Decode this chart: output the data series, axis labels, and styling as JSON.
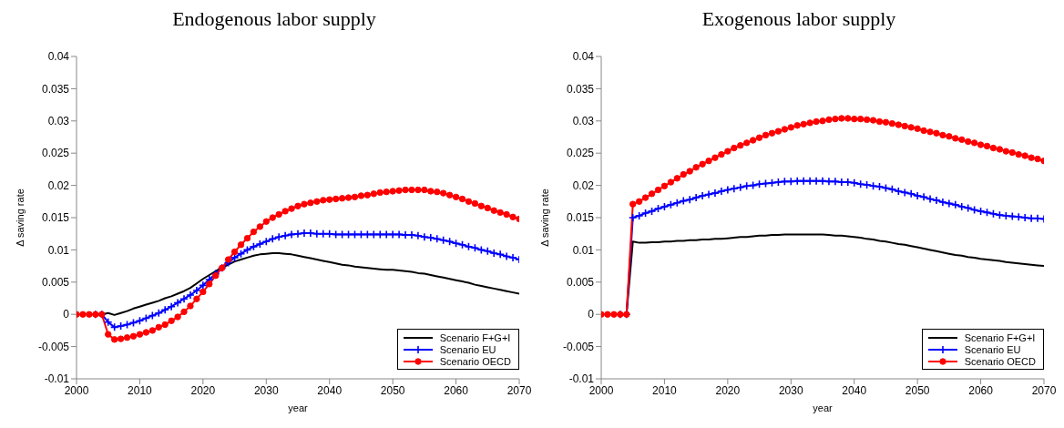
{
  "chart_data": [
    {
      "type": "line",
      "title": "Endogenous labor supply",
      "xlabel": "year",
      "ylabel": "Δ saving rate",
      "legend": "bottom right",
      "grid": false,
      "line_style": "solid",
      "xlim": [
        2000,
        2070
      ],
      "xticks": [
        2000,
        2010,
        2020,
        2030,
        2040,
        2050,
        2060,
        2070
      ],
      "ylim": [
        -0.01,
        0.04
      ],
      "yticks": [
        -0.01,
        -0.005,
        0,
        0.005,
        0.01,
        0.015,
        0.02,
        0.025,
        0.03,
        0.035,
        0.04
      ],
      "x": [
        2000,
        2001,
        2002,
        2003,
        2004,
        2005,
        2006,
        2007,
        2008,
        2009,
        2010,
        2011,
        2012,
        2013,
        2014,
        2015,
        2016,
        2017,
        2018,
        2019,
        2020,
        2021,
        2022,
        2023,
        2024,
        2025,
        2026,
        2027,
        2028,
        2029,
        2030,
        2031,
        2032,
        2033,
        2034,
        2035,
        2036,
        2037,
        2038,
        2039,
        2040,
        2041,
        2042,
        2043,
        2044,
        2045,
        2046,
        2047,
        2048,
        2049,
        2050,
        2051,
        2052,
        2053,
        2054,
        2055,
        2056,
        2057,
        2058,
        2059,
        2060,
        2061,
        2062,
        2063,
        2064,
        2065,
        2066,
        2067,
        2068,
        2069,
        2070
      ],
      "series": [
        {
          "name": "Scenario F+G+I",
          "color": "#000000",
          "marker": "none",
          "values": [
            null,
            null,
            null,
            0,
            0,
            0.0002,
            -0.0001,
            0.0002,
            0.0005,
            0.0009,
            0.0012,
            0.0015,
            0.0018,
            0.0021,
            0.0025,
            0.0028,
            0.0032,
            0.0036,
            0.0041,
            0.0048,
            0.0055,
            0.0061,
            0.0067,
            0.0072,
            0.0077,
            0.0082,
            0.0085,
            0.0088,
            0.0091,
            0.0093,
            0.0094,
            0.0095,
            0.0095,
            0.0094,
            0.0093,
            0.0091,
            0.0089,
            0.0087,
            0.0085,
            0.0083,
            0.0081,
            0.0079,
            0.0077,
            0.0076,
            0.0074,
            0.0073,
            0.0072,
            0.0071,
            0.007,
            0.0069,
            0.0069,
            0.0068,
            0.0067,
            0.0066,
            0.0064,
            0.0063,
            0.0061,
            0.0059,
            0.0057,
            0.0055,
            0.0053,
            0.0051,
            0.0049,
            0.0046,
            0.0044,
            0.0042,
            0.004,
            0.0038,
            0.0036,
            0.0034,
            0.0032
          ]
        },
        {
          "name": "Scenario EU",
          "color": "#0000ff",
          "marker": "cross",
          "values": [
            null,
            null,
            null,
            0,
            0,
            -0.0012,
            -0.002,
            -0.0018,
            -0.0016,
            -0.0013,
            -0.001,
            -0.0006,
            -0.0002,
            0.0002,
            0.0007,
            0.0012,
            0.0018,
            0.0024,
            0.003,
            0.0037,
            0.0045,
            0.0054,
            0.0063,
            0.0072,
            0.008,
            0.0088,
            0.0094,
            0.01,
            0.0105,
            0.0109,
            0.0113,
            0.0117,
            0.012,
            0.0122,
            0.0124,
            0.0125,
            0.0126,
            0.0126,
            0.0125,
            0.0125,
            0.0125,
            0.0124,
            0.0124,
            0.0124,
            0.0124,
            0.0124,
            0.0124,
            0.0124,
            0.0124,
            0.0124,
            0.0124,
            0.0124,
            0.0123,
            0.0123,
            0.0122,
            0.012,
            0.0119,
            0.0117,
            0.0115,
            0.0113,
            0.011,
            0.0108,
            0.0105,
            0.0103,
            0.01,
            0.0098,
            0.0095,
            0.0093,
            0.009,
            0.0088,
            0.0085
          ]
        },
        {
          "name": "Scenario OECD",
          "color": "#ff0000",
          "marker": "circle",
          "values": [
            0,
            0,
            0,
            0,
            0,
            -0.0031,
            -0.0039,
            -0.0038,
            -0.0036,
            -0.0034,
            -0.0031,
            -0.0028,
            -0.0025,
            -0.002,
            -0.0016,
            -0.001,
            -0.0004,
            0.0004,
            0.0013,
            0.0024,
            0.0035,
            0.0047,
            0.006,
            0.0072,
            0.0085,
            0.0097,
            0.0108,
            0.0118,
            0.0128,
            0.0136,
            0.0144,
            0.015,
            0.0155,
            0.016,
            0.0164,
            0.0168,
            0.0171,
            0.0173,
            0.0175,
            0.0177,
            0.0178,
            0.0179,
            0.018,
            0.0181,
            0.0182,
            0.0184,
            0.0185,
            0.0187,
            0.0189,
            0.019,
            0.0191,
            0.0192,
            0.0193,
            0.0193,
            0.0193,
            0.0193,
            0.0191,
            0.019,
            0.0188,
            0.0185,
            0.0182,
            0.0179,
            0.0175,
            0.0172,
            0.0168,
            0.0165,
            0.0161,
            0.0158,
            0.0155,
            0.0151,
            0.0148
          ]
        }
      ]
    },
    {
      "type": "line",
      "title": "Exogenous labor supply",
      "xlabel": "year",
      "ylabel": "Δ saving rate",
      "legend": "bottom right",
      "grid": false,
      "line_style": "solid",
      "xlim": [
        2000,
        2070
      ],
      "xticks": [
        2000,
        2010,
        2020,
        2030,
        2040,
        2050,
        2060,
        2070
      ],
      "ylim": [
        -0.01,
        0.04
      ],
      "yticks": [
        -0.01,
        -0.005,
        0,
        0.005,
        0.01,
        0.015,
        0.02,
        0.025,
        0.03,
        0.035,
        0.04
      ],
      "x": [
        2000,
        2001,
        2002,
        2003,
        2004,
        2005,
        2006,
        2007,
        2008,
        2009,
        2010,
        2011,
        2012,
        2013,
        2014,
        2015,
        2016,
        2017,
        2018,
        2019,
        2020,
        2021,
        2022,
        2023,
        2024,
        2025,
        2026,
        2027,
        2028,
        2029,
        2030,
        2031,
        2032,
        2033,
        2034,
        2035,
        2036,
        2037,
        2038,
        2039,
        2040,
        2041,
        2042,
        2043,
        2044,
        2045,
        2046,
        2047,
        2048,
        2049,
        2050,
        2051,
        2052,
        2053,
        2054,
        2055,
        2056,
        2057,
        2058,
        2059,
        2060,
        2061,
        2062,
        2063,
        2064,
        2065,
        2066,
        2067,
        2068,
        2069,
        2070
      ],
      "series": [
        {
          "name": "Scenario F+G+I",
          "color": "#000000",
          "marker": "none",
          "values": [
            null,
            null,
            null,
            0,
            0,
            0.0113,
            0.0111,
            0.0111,
            0.0112,
            0.0112,
            0.0113,
            0.0113,
            0.0114,
            0.0114,
            0.0115,
            0.0115,
            0.0116,
            0.0116,
            0.0117,
            0.0117,
            0.0118,
            0.0119,
            0.012,
            0.012,
            0.0121,
            0.0122,
            0.0122,
            0.0123,
            0.0123,
            0.0124,
            0.0124,
            0.0124,
            0.0124,
            0.0124,
            0.0124,
            0.0124,
            0.0123,
            0.0122,
            0.0122,
            0.0121,
            0.012,
            0.0119,
            0.0117,
            0.0116,
            0.0114,
            0.0113,
            0.0111,
            0.0109,
            0.0108,
            0.0106,
            0.0104,
            0.0102,
            0.01,
            0.0098,
            0.0096,
            0.0094,
            0.0092,
            0.0091,
            0.0089,
            0.0088,
            0.0086,
            0.0085,
            0.0084,
            0.0083,
            0.0081,
            0.008,
            0.0079,
            0.0078,
            0.0077,
            0.0076,
            0.0075
          ]
        },
        {
          "name": "Scenario EU",
          "color": "#0000ff",
          "marker": "cross",
          "values": [
            null,
            null,
            null,
            0,
            0,
            0.015,
            0.0153,
            0.0157,
            0.016,
            0.0164,
            0.0167,
            0.017,
            0.0173,
            0.0176,
            0.0178,
            0.0181,
            0.0184,
            0.0186,
            0.0188,
            0.0191,
            0.0193,
            0.0195,
            0.0197,
            0.0199,
            0.02,
            0.0202,
            0.0203,
            0.0204,
            0.0205,
            0.0206,
            0.0206,
            0.0207,
            0.0207,
            0.0207,
            0.0207,
            0.0207,
            0.0206,
            0.0206,
            0.0205,
            0.0205,
            0.0204,
            0.0202,
            0.0201,
            0.0199,
            0.0198,
            0.0196,
            0.0194,
            0.0191,
            0.0189,
            0.0187,
            0.0184,
            0.0182,
            0.0179,
            0.0177,
            0.0174,
            0.0172,
            0.017,
            0.0167,
            0.0165,
            0.0162,
            0.016,
            0.0158,
            0.0156,
            0.0154,
            0.0153,
            0.0152,
            0.0151,
            0.015,
            0.0149,
            0.0149,
            0.0148
          ]
        },
        {
          "name": "Scenario OECD",
          "color": "#ff0000",
          "marker": "circle",
          "values": [
            0,
            0,
            0,
            0,
            0,
            0.0171,
            0.0175,
            0.0181,
            0.0187,
            0.0193,
            0.0199,
            0.0205,
            0.0211,
            0.0217,
            0.0222,
            0.0228,
            0.0233,
            0.0238,
            0.0243,
            0.0248,
            0.0253,
            0.0258,
            0.0262,
            0.0266,
            0.027,
            0.0274,
            0.0278,
            0.0281,
            0.0284,
            0.0287,
            0.029,
            0.0293,
            0.0295,
            0.0297,
            0.0299,
            0.03,
            0.0302,
            0.0303,
            0.0304,
            0.0304,
            0.0303,
            0.0303,
            0.0302,
            0.0301,
            0.0299,
            0.0298,
            0.0296,
            0.0294,
            0.0292,
            0.029,
            0.0288,
            0.0285,
            0.0283,
            0.0281,
            0.0278,
            0.0276,
            0.0273,
            0.0271,
            0.0268,
            0.0266,
            0.0263,
            0.0261,
            0.0258,
            0.0256,
            0.0253,
            0.0251,
            0.0248,
            0.0246,
            0.0243,
            0.0241,
            0.0238
          ]
        }
      ]
    }
  ]
}
